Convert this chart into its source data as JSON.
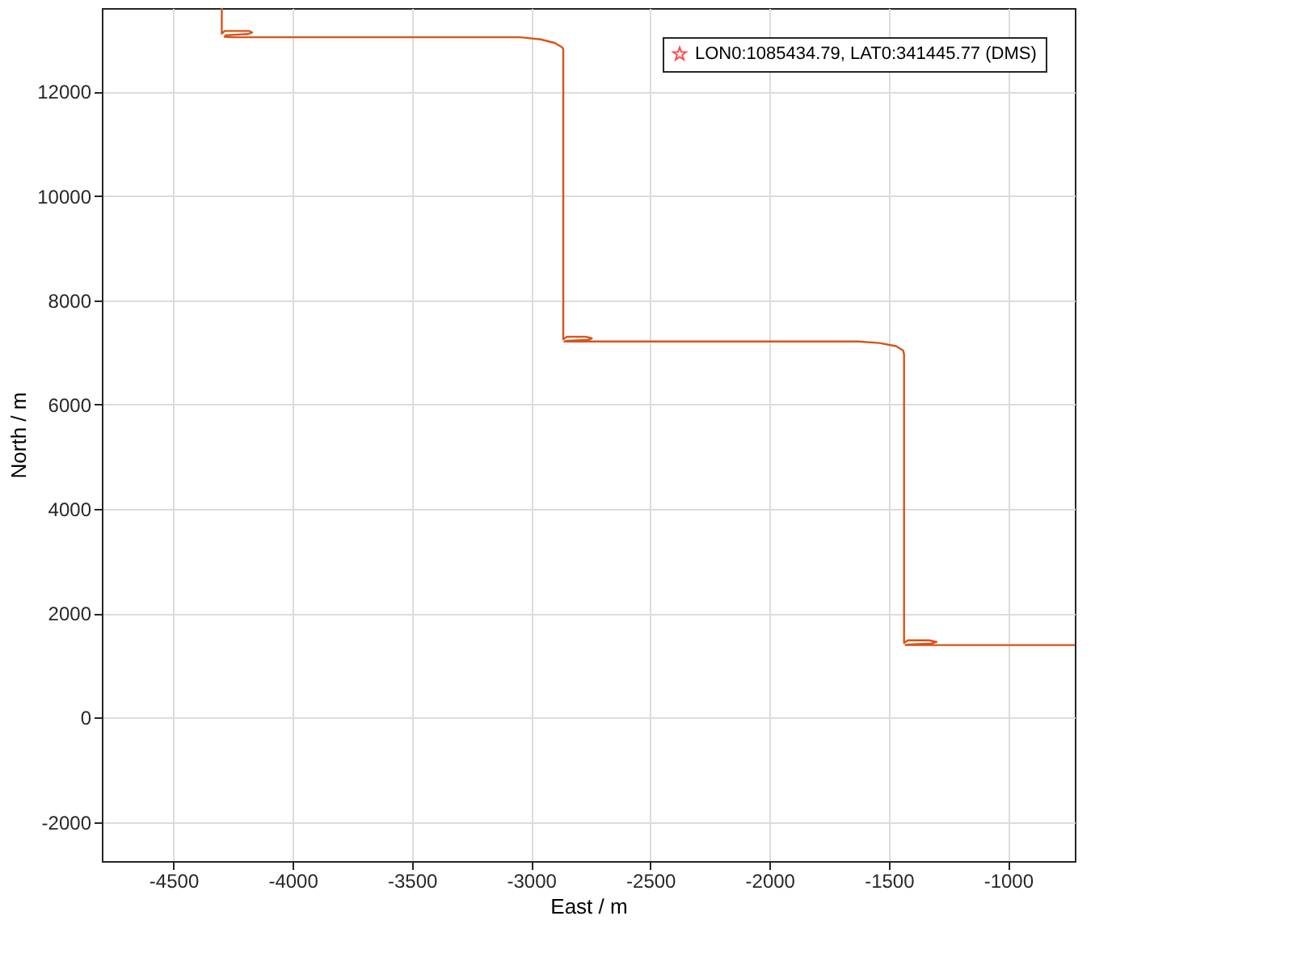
{
  "chart_data": {
    "type": "line",
    "xlabel": "East / m",
    "ylabel": "North / m",
    "xlim": [
      -4800,
      -720
    ],
    "ylim": [
      -2750,
      13600
    ],
    "xticks": [
      -4500,
      -4000,
      -3500,
      -3000,
      -2500,
      -2000,
      -1500,
      -1000
    ],
    "yticks": [
      -2000,
      0,
      2000,
      4000,
      6000,
      8000,
      10000,
      12000
    ],
    "grid": true,
    "legend": "top right",
    "series": [
      {
        "color": "#d95319",
        "marker": "none",
        "line_style": "solid",
        "x": [
          -4297,
          -4297,
          -4285,
          -4180,
          -4170,
          -4190,
          -4280,
          -4285,
          -4250,
          -3045,
          -2960,
          -2900,
          -2870,
          -2865,
          -2865,
          -2850,
          -2770,
          -2745,
          -2760,
          -2850,
          -2860,
          -2830,
          -1628,
          -1540,
          -1470,
          -1440,
          -1436,
          -1436,
          -1420,
          -1330,
          -1300,
          -1320,
          -1420,
          -1430,
          -1400,
          -720
        ],
        "values": [
          13600,
          13110,
          13160,
          13160,
          13130,
          13100,
          13080,
          13050,
          13040,
          13040,
          13000,
          12930,
          12850,
          12810,
          7250,
          7300,
          7300,
          7270,
          7240,
          7220,
          7210,
          7210,
          7210,
          7180,
          7120,
          7040,
          6960,
          1430,
          1480,
          1480,
          1450,
          1420,
          1400,
          1390,
          1390,
          1390
        ]
      },
      {
        "type": "scatter",
        "name": "LON0:1085434.79, LAT0:341445.77 (DMS)",
        "color": "#ff0000",
        "marker": "star"
      }
    ]
  }
}
